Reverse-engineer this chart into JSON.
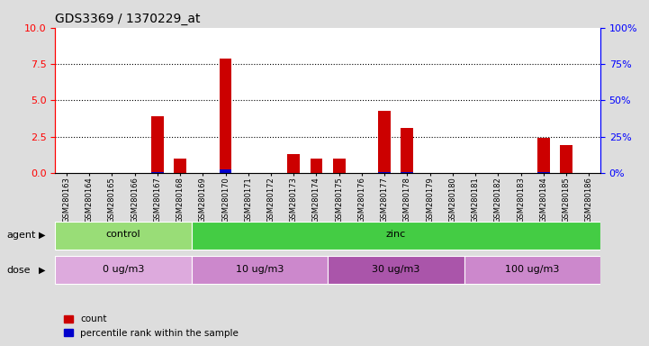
{
  "title": "GDS3369 / 1370229_at",
  "samples": [
    "GSM280163",
    "GSM280164",
    "GSM280165",
    "GSM280166",
    "GSM280167",
    "GSM280168",
    "GSM280169",
    "GSM280170",
    "GSM280171",
    "GSM280172",
    "GSM280173",
    "GSM280174",
    "GSM280175",
    "GSM280176",
    "GSM280177",
    "GSM280178",
    "GSM280179",
    "GSM280180",
    "GSM280181",
    "GSM280182",
    "GSM280183",
    "GSM280184",
    "GSM280185",
    "GSM280186"
  ],
  "count_values": [
    0,
    0,
    0,
    0,
    3.9,
    1.0,
    0,
    7.9,
    0,
    0,
    1.3,
    1.0,
    1.0,
    0,
    4.3,
    3.1,
    0,
    0,
    0,
    0,
    0,
    2.4,
    1.9,
    0
  ],
  "percentile_values": [
    0,
    0,
    0,
    0,
    0.5,
    0,
    0,
    2.2,
    0,
    0,
    0.3,
    0.3,
    0.3,
    0,
    0.7,
    0.5,
    0,
    0,
    0,
    0,
    0,
    0.5,
    0.3,
    0
  ],
  "count_color": "#cc0000",
  "percentile_color": "#0000cc",
  "ylim_left": [
    0,
    10
  ],
  "ylim_right": [
    0,
    100
  ],
  "yticks_left": [
    0,
    2.5,
    5.0,
    7.5,
    10
  ],
  "yticks_right": [
    0,
    25,
    50,
    75,
    100
  ],
  "grid_values": [
    2.5,
    5.0,
    7.5
  ],
  "agent_groups": [
    {
      "label": "control",
      "start": 0,
      "end": 6,
      "color": "#99dd77"
    },
    {
      "label": "zinc",
      "start": 6,
      "end": 24,
      "color": "#44cc44"
    }
  ],
  "dose_groups": [
    {
      "label": "0 ug/m3",
      "start": 0,
      "end": 6,
      "color": "#ddaadd"
    },
    {
      "label": "10 ug/m3",
      "start": 6,
      "end": 12,
      "color": "#cc88cc"
    },
    {
      "label": "30 ug/m3",
      "start": 12,
      "end": 18,
      "color": "#aa55aa"
    },
    {
      "label": "100 ug/m3",
      "start": 18,
      "end": 24,
      "color": "#cc88cc"
    }
  ],
  "agent_label": "agent",
  "dose_label": "dose",
  "legend_count": "count",
  "legend_percentile": "percentile rank within the sample",
  "bar_width": 0.55,
  "background_color": "#dddddd",
  "plot_bg_color": "#ffffff"
}
